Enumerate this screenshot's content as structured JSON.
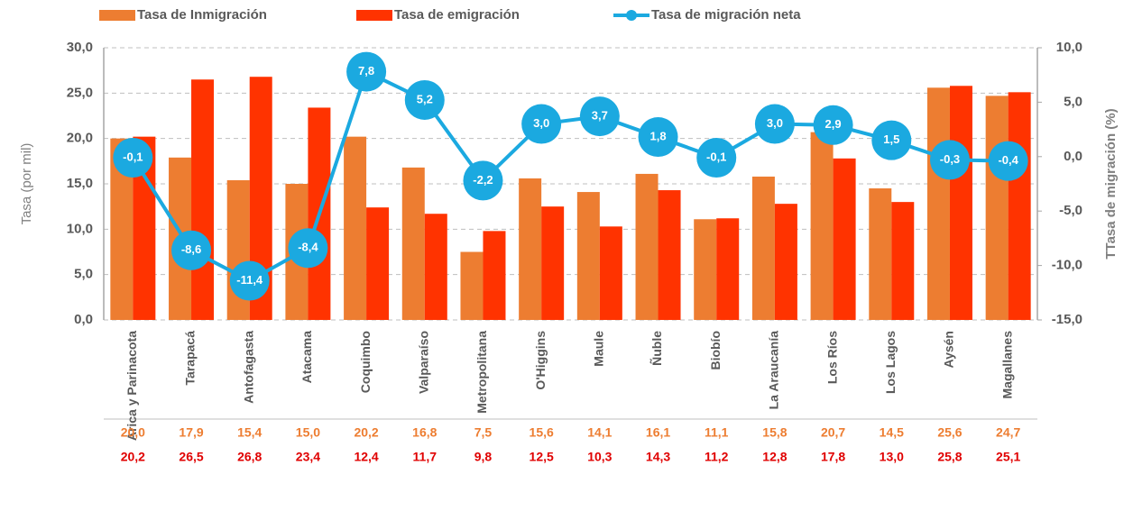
{
  "chart_data": {
    "type": "bar",
    "categories": [
      "Arica y Parinacota",
      "Tarapacá",
      "Antofagasta",
      "Atacama",
      "Coquimbo",
      "Valparaíso",
      "Metropolitana",
      "O'Higgins",
      "Maule",
      "Ñuble",
      "Biobío",
      "La Araucanía",
      "Los Ríos",
      "Los Lagos",
      "Aysén",
      "Magallanes"
    ],
    "series": [
      {
        "name": "Tasa de Inmigración",
        "color": "#ed7d31",
        "values": [
          20.0,
          17.9,
          15.4,
          15.0,
          20.2,
          16.8,
          7.5,
          15.6,
          14.1,
          16.1,
          11.1,
          15.8,
          20.7,
          14.5,
          25.6,
          24.7
        ],
        "value_labels": [
          "20,0",
          "17,9",
          "15,4",
          "15,0",
          "20,2",
          "16,8",
          "7,5",
          "15,6",
          "14,1",
          "16,1",
          "11,1",
          "15,8",
          "20,7",
          "14,5",
          "25,6",
          "24,7"
        ]
      },
      {
        "name": "Tasa de emigración",
        "color": "#ff3300",
        "values": [
          20.2,
          26.5,
          26.8,
          23.4,
          12.4,
          11.7,
          9.8,
          12.5,
          10.3,
          14.3,
          11.2,
          12.8,
          17.8,
          13.0,
          25.8,
          25.1
        ],
        "value_labels": [
          "20,2",
          "26,5",
          "26,8",
          "23,4",
          "12,4",
          "11,7",
          "9,8",
          "12,5",
          "10,3",
          "14,3",
          "11,2",
          "12,8",
          "17,8",
          "13,0",
          "25,8",
          "25,1"
        ]
      },
      {
        "name": "Tasa de migración neta",
        "color": "#1ba9e0",
        "axis": "y2",
        "type": "line",
        "values": [
          -0.1,
          -8.6,
          -11.4,
          -8.4,
          7.8,
          5.2,
          -2.2,
          3.0,
          3.7,
          1.8,
          -0.1,
          3.0,
          2.9,
          1.5,
          -0.3,
          -0.4
        ],
        "value_labels": [
          "-0,1",
          "-8,6",
          "-11,4",
          "-8,4",
          "7,8",
          "5,2",
          "-2,2",
          "3,0",
          "3,7",
          "1,8",
          "-0,1",
          "3,0",
          "2,9",
          "1,5",
          "-0,3",
          "-0,4"
        ]
      }
    ],
    "ylabel": "Tasa (por mil)",
    "y2label": "TTasa de migración (%)",
    "ylim": [
      0,
      30
    ],
    "yticks": [
      {
        "value": 0,
        "label": "0,0"
      },
      {
        "value": 5,
        "label": "5,0"
      },
      {
        "value": 10,
        "label": "10,0"
      },
      {
        "value": 15,
        "label": "15,0"
      },
      {
        "value": 20,
        "label": "20,0"
      },
      {
        "value": 25,
        "label": "25,0"
      },
      {
        "value": 30,
        "label": "30,0"
      }
    ],
    "y2lim": [
      -15,
      10
    ],
    "y2ticks": [
      {
        "value": -15,
        "label": "-15,0"
      },
      {
        "value": -10,
        "label": "-10,0"
      },
      {
        "value": -5,
        "label": "-5,0"
      },
      {
        "value": 0,
        "label": "0,0"
      },
      {
        "value": 5,
        "label": "5,0"
      },
      {
        "value": 10,
        "label": "10,0"
      }
    ],
    "grid": true,
    "legend": "top"
  }
}
